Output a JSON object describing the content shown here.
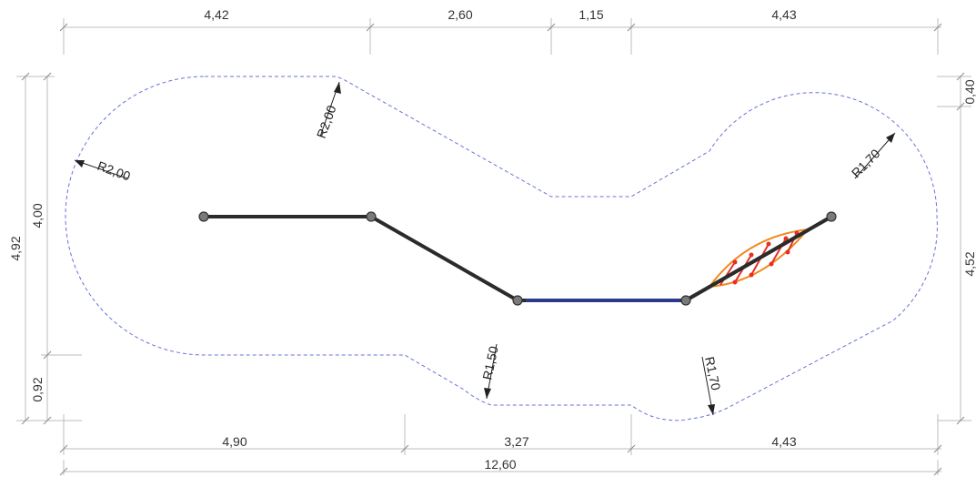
{
  "dimensions": {
    "top": [
      "4,42",
      "2,60",
      "1,15",
      "4,43"
    ],
    "bottom": [
      "4,90",
      "3,27",
      "4,43"
    ],
    "overall": "12,60",
    "left_outer": "4,92",
    "left_inner": "4,00",
    "left_bottom": "0,92",
    "right_top": "0,40",
    "right": "4,52"
  },
  "radii": {
    "r1": "R2,00",
    "r2": "R2,00",
    "r3": "R1,70",
    "r4": "R1,50",
    "r5": "R1,70"
  },
  "colors": {
    "outline": "#6a72d8",
    "cable": "#2b2b2b",
    "cable_blue": "#2c3a8c",
    "net_orange": "#f08a1c",
    "net_red": "#e53023"
  }
}
